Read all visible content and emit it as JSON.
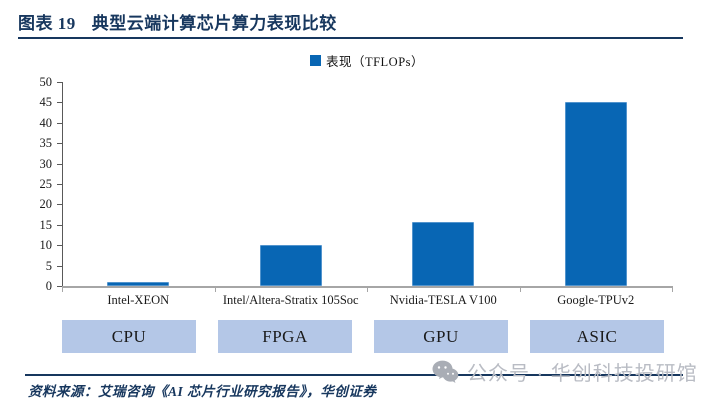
{
  "header": {
    "figure_label": "图表 19",
    "title": "典型云端计算芯片算力表现比较"
  },
  "chart_data": {
    "type": "bar",
    "title": "典型云端计算芯片算力表现比较",
    "legend_label": "表现（TFLOPs）",
    "legend_position": "top-center",
    "categories": [
      "Intel-XEON",
      "Intel/Altera-Stratix 105Soc",
      "Nvidia-TESLA V100",
      "Google-TPUv2"
    ],
    "values": [
      1,
      10,
      15.7,
      45
    ],
    "category_groups": [
      "CPU",
      "FPGA",
      "GPU",
      "ASIC"
    ],
    "xlabel": "",
    "ylabel": "",
    "ylim": [
      0,
      50
    ],
    "ytick_step": 5,
    "grid": false
  },
  "footer": {
    "source_text": "资料来源：艾瑞咨询《AI 芯片行业研究报告》，华创证券",
    "watermark_text": "公众号 · 华创科技投研馆"
  },
  "colors": {
    "accent_navy": "#17375e",
    "bar_blue": "#0866b4",
    "group_box_blue": "#b4c7e7",
    "axis_gray": "#a6a6a6",
    "watermark_gray": "#b9bcc4"
  }
}
